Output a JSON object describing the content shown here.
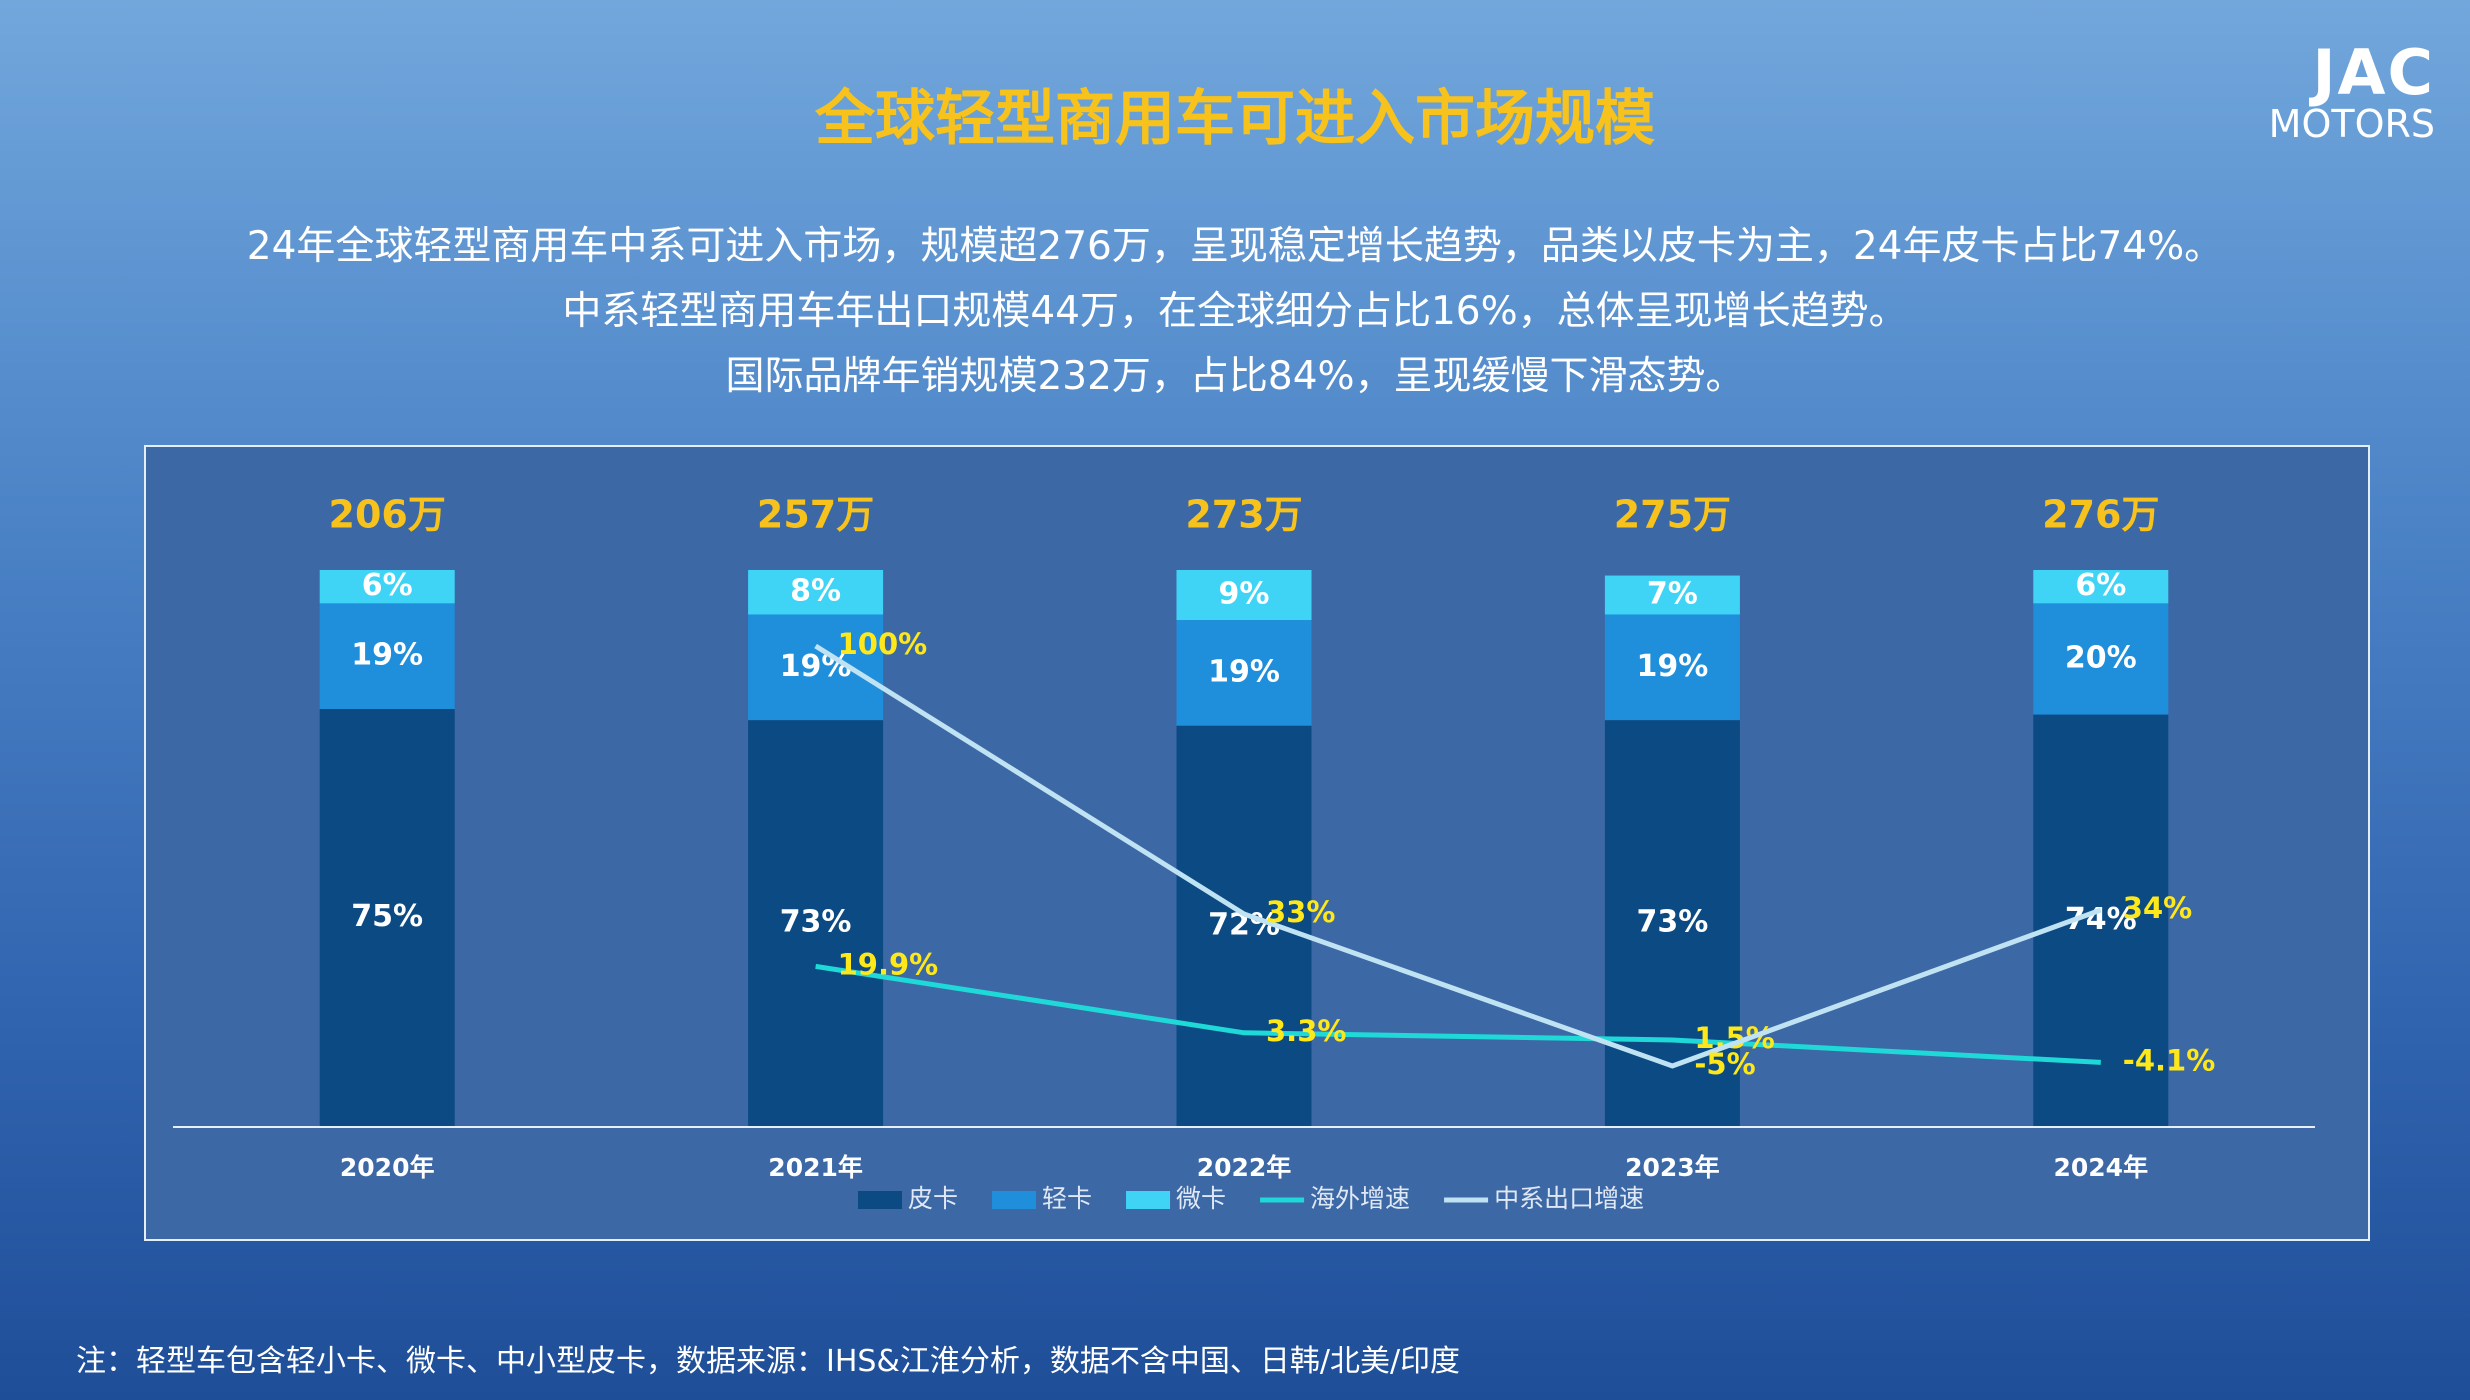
{
  "title": "全球轻型商用车可进入市场规模",
  "summary": [
    "24年全球轻型商用车中系可进入市场，规模超276万，呈现稳定增长趋势，品类以皮卡为主，24年皮卡占比74%。",
    "中系轻型商用车年出口规模44万，在全球细分占比16%，总体呈现增长趋势。",
    "国际品牌年销规模232万，占比84%，呈现缓慢下滑态势。"
  ],
  "logo": [
    "JAC",
    "MOTORS"
  ],
  "note": "注：轻型车包含轻小卡、微卡、中小型皮卡，数据来源：IHS&江淮分析，数据不含中国、日韩/北美/印度",
  "chart_data": {
    "type": "bar",
    "stacked": true,
    "categories": [
      "2020年",
      "2021年",
      "2022年",
      "2023年",
      "2024年"
    ],
    "totals": {
      "values": [
        206,
        257,
        273,
        275,
        276
      ],
      "value_labels": [
        "206万",
        "257万",
        "273万",
        "275万",
        "276万"
      ],
      "color": "#f7c21c"
    },
    "series": [
      {
        "name": "皮卡",
        "color": "#0b4a82",
        "values": [
          75,
          73,
          72,
          73,
          74
        ],
        "value_labels": [
          "75%",
          "73%",
          "72%",
          "73%",
          "74%"
        ]
      },
      {
        "name": "轻卡",
        "color": "#1f8edb",
        "values": [
          19,
          19,
          19,
          19,
          20
        ],
        "value_labels": [
          "19%",
          "19%",
          "19%",
          "19%",
          "20%"
        ]
      },
      {
        "name": "微卡",
        "color": "#3fd4f6",
        "values": [
          6,
          8,
          9,
          7,
          6
        ],
        "value_labels": [
          "6%",
          "8%",
          "9%",
          "7%",
          "6%"
        ]
      },
      {
        "name": "海外增速",
        "type": "line",
        "axis": "y2",
        "color": "#1fd8d8",
        "values": [
          null,
          19.9,
          3.3,
          1.5,
          -4.1
        ],
        "value_labels": [
          null,
          "19.9%",
          "3.3%",
          "1.5%",
          "-4.1%"
        ]
      },
      {
        "name": "中系出口增速",
        "type": "line",
        "axis": "y2",
        "color": "#bfe3f2",
        "values": [
          null,
          100,
          33,
          -5,
          34
        ],
        "value_labels": [
          null,
          "100%",
          "33%",
          "-5%",
          "34%"
        ]
      }
    ],
    "ylim": [
      0,
      100
    ],
    "y2lim": [
      -20,
      119
    ],
    "line_label_color": "#ffe81a",
    "legend": "bottom"
  }
}
